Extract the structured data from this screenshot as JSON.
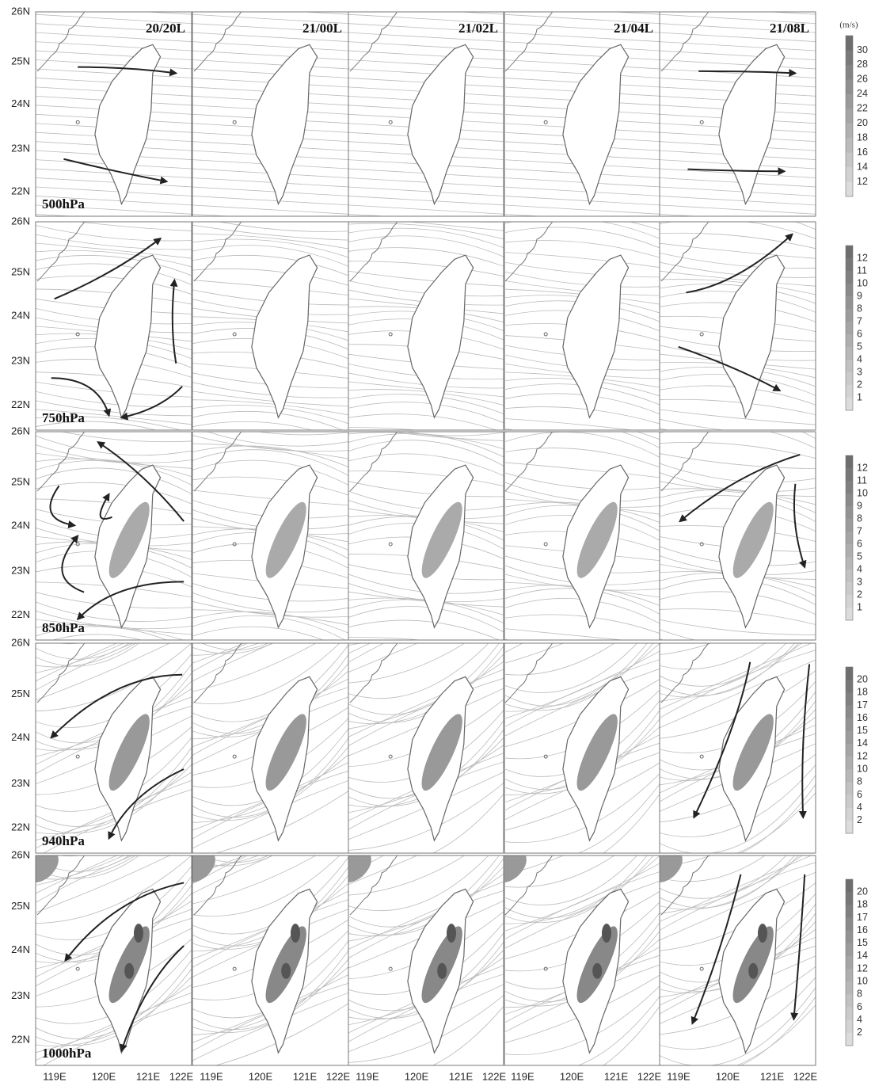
{
  "time_labels": [
    "20/20L",
    "21/00L",
    "21/02L",
    "21/04L",
    "21/08L"
  ],
  "rows": [
    {
      "level": "500hPa",
      "colorbar_ticks": [
        30,
        28,
        26,
        24,
        22,
        20,
        18,
        16,
        14,
        12
      ]
    },
    {
      "level": "750hPa",
      "colorbar_ticks": [
        12,
        11,
        10,
        9,
        8,
        7,
        6,
        5,
        4,
        3,
        2,
        1
      ]
    },
    {
      "level": "850hPa",
      "colorbar_ticks": [
        12,
        11,
        10,
        9,
        8,
        7,
        6,
        5,
        4,
        3,
        2,
        1
      ]
    },
    {
      "level": "940hPa",
      "colorbar_ticks": [
        20,
        18,
        17,
        16,
        15,
        14,
        12,
        10,
        8,
        6,
        4,
        2
      ]
    },
    {
      "level": "1000hPa",
      "colorbar_ticks": [
        20,
        18,
        17,
        16,
        15,
        14,
        12,
        10,
        8,
        6,
        4,
        2
      ]
    }
  ],
  "lat_labels": [
    "26N",
    "25N",
    "24N",
    "23N",
    "22N"
  ],
  "lon_labels": [
    "119E",
    "120E",
    "121E",
    "122E"
  ],
  "unit": "(m/s)"
}
